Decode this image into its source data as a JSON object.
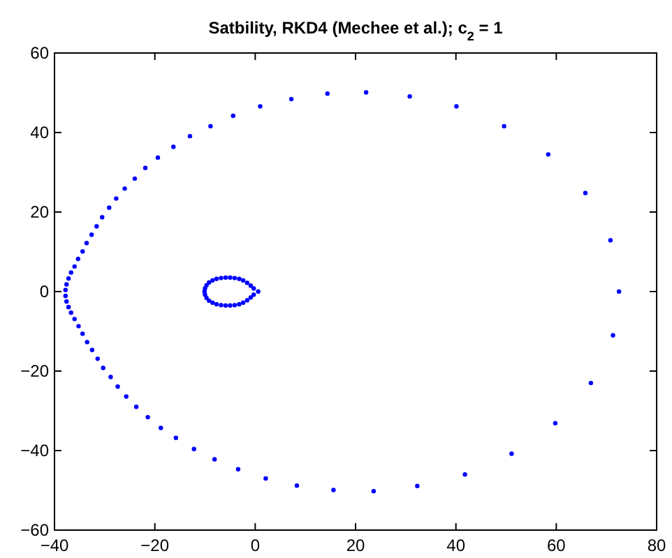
{
  "chart_data": {
    "type": "scatter",
    "title": "Satbility, RKD4 (Mechee et al.); c$_{2}$ = 1",
    "marker": "circle",
    "xlim": [
      -40,
      80
    ],
    "ylim": [
      -60,
      60
    ],
    "xticks": [
      -40,
      -20,
      0,
      20,
      40,
      60,
      80
    ],
    "yticks": [
      -60,
      -40,
      -20,
      0,
      20,
      40,
      60
    ],
    "series": [
      {
        "color": "#0000ff",
        "x": [
          -37.8,
          -37.6,
          -37.2,
          -36.7,
          -36.0,
          -35.3,
          -34.4,
          -33.6,
          -32.6,
          -31.6,
          -30.5,
          -29.1,
          -27.7,
          -26.0,
          -24.0,
          -21.9,
          -19.4,
          -16.3,
          -13.0,
          -8.9,
          -4.4,
          1.0,
          7.2,
          14.4,
          22.1,
          30.8,
          40.1,
          49.6,
          58.4,
          65.8,
          70.8,
          72.5,
          71.3,
          66.9,
          59.8,
          51.1,
          41.8,
          32.3,
          23.6,
          15.6,
          8.3,
          2.1,
          -3.4,
          -8.1,
          -12.2,
          -15.8,
          -18.8,
          -21.4,
          -23.7,
          -25.7,
          -27.4,
          -28.8,
          -30.3,
          -31.4,
          -32.5,
          -33.5,
          -34.4,
          -35.2,
          -36.0,
          -36.7,
          -37.2,
          -37.6,
          -37.8,
          -10.1,
          -10.0,
          -9.7,
          -9.2,
          -8.5,
          -7.7,
          -6.8,
          -5.9,
          -5.0,
          -4.1,
          -3.2,
          -2.4,
          -1.6,
          -0.9,
          -0.3,
          0.6,
          -0.3,
          -0.9,
          -1.6,
          -2.4,
          -3.2,
          -4.1,
          -5.0,
          -5.9,
          -6.8,
          -7.7,
          -8.5,
          -9.2,
          -9.7,
          -10.0
        ],
        "values": [
          0.4,
          1.8,
          3.3,
          4.8,
          6.3,
          8.2,
          10.1,
          12.2,
          14.3,
          16.4,
          18.7,
          21.1,
          23.4,
          25.9,
          28.4,
          31.1,
          33.7,
          36.4,
          39.1,
          41.6,
          44.2,
          46.6,
          48.4,
          49.8,
          50.1,
          49.1,
          46.6,
          41.6,
          34.5,
          24.8,
          12.9,
          0,
          -11.0,
          -23.0,
          -33.1,
          -40.8,
          -46.0,
          -48.9,
          -50.2,
          -49.9,
          -48.8,
          -47.0,
          -44.7,
          -42.2,
          -39.6,
          -36.8,
          -34.3,
          -31.6,
          -29.0,
          -26.4,
          -23.9,
          -21.5,
          -19.2,
          -16.9,
          -14.7,
          -12.7,
          -10.6,
          -8.7,
          -6.9,
          -5.3,
          -3.9,
          -2.5,
          -1.1,
          0,
          0.8,
          1.6,
          2.3,
          2.8,
          3.2,
          3.4,
          3.5,
          3.5,
          3.4,
          3.2,
          2.8,
          2.2,
          1.5,
          0.8,
          0,
          -0.8,
          -1.5,
          -2.2,
          -2.8,
          -3.2,
          -3.4,
          -3.5,
          -3.5,
          -3.4,
          -3.2,
          -2.8,
          -2.3,
          -1.6,
          -0.8
        ]
      }
    ]
  }
}
